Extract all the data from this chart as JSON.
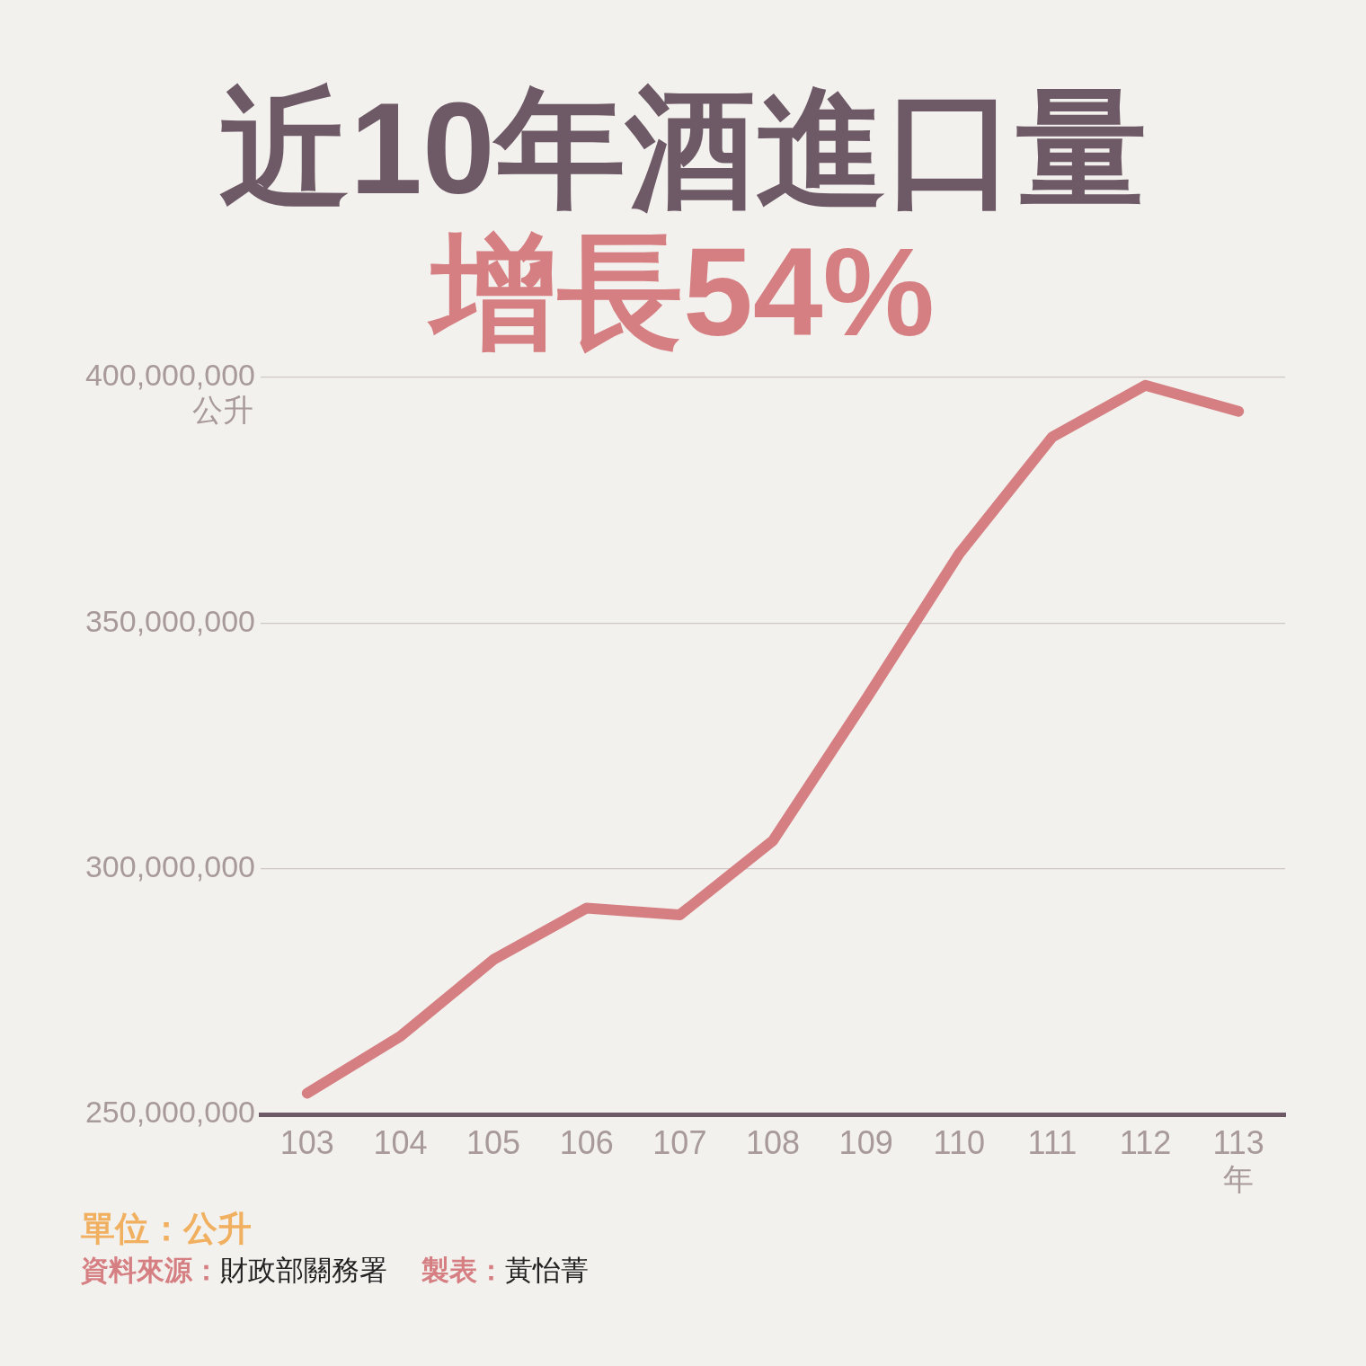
{
  "chart_data": {
    "type": "line",
    "title": "近10年酒進口量",
    "subtitle": "增長54%",
    "ylabel": "公升",
    "xlabel": "年",
    "categories": [
      "103",
      "104",
      "105",
      "106",
      "107",
      "108",
      "109",
      "110",
      "111",
      "112",
      "113"
    ],
    "series": [
      {
        "color": "#d67f82",
        "values": [
          254300000.0,
          265900000.0,
          281500000.0,
          292000000.0,
          290600000.0,
          305700000.0,
          334500000.0,
          364100000.0,
          387900000.0,
          398400000.0,
          393100000.0
        ]
      }
    ],
    "ylim": [
      250000000,
      400000000
    ],
    "yticks": [
      {
        "value": 250000000,
        "label": "250,000,000"
      },
      {
        "value": 300000000,
        "label": "300,000,000"
      },
      {
        "value": 350000000,
        "label": "350,000,000"
      },
      {
        "value": 400000000,
        "label": "400,000,000"
      }
    ],
    "grid": "y",
    "legend": false,
    "marker": "none",
    "line_style": "solid",
    "annotations": [
      "單位：公升",
      "資料來源：財政部關務署",
      "製表：黃怡菁"
    ]
  }
}
